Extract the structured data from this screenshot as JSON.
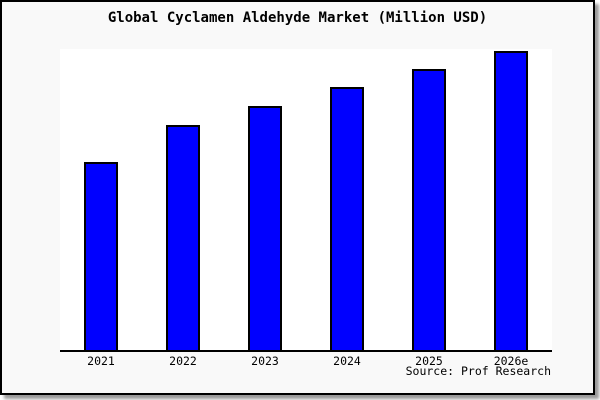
{
  "title": "Global Cyclamen Aldehyde Market (Million USD)",
  "source_note": "Source: Prof Research",
  "colors": {
    "bar_fill": "#0000FF",
    "bar_border": "#000000",
    "axis": "#000000",
    "frame_background": "#f9f9f9",
    "plot_background": "#ffffff",
    "frame_border": "#000000",
    "shadow": "#9a9a9a",
    "text": "#000000"
  },
  "chart_data": {
    "type": "bar",
    "title": "Global Cyclamen Aldehyde Market (Million USD)",
    "categories": [
      "2021",
      "2022",
      "2023",
      "2024",
      "2025",
      "2026e"
    ],
    "values": [
      188,
      225,
      244,
      263,
      281,
      299
    ],
    "value_units": "relative (no y-axis labels shown)",
    "xlabel": "",
    "ylabel": "",
    "ylim": [
      0,
      301
    ],
    "y_axis_visible": false,
    "gridlines": false,
    "legend_position": "none",
    "bar_color": "#0000FF",
    "bar_border_color": "#000000",
    "source_note": "Source: Prof Research"
  }
}
